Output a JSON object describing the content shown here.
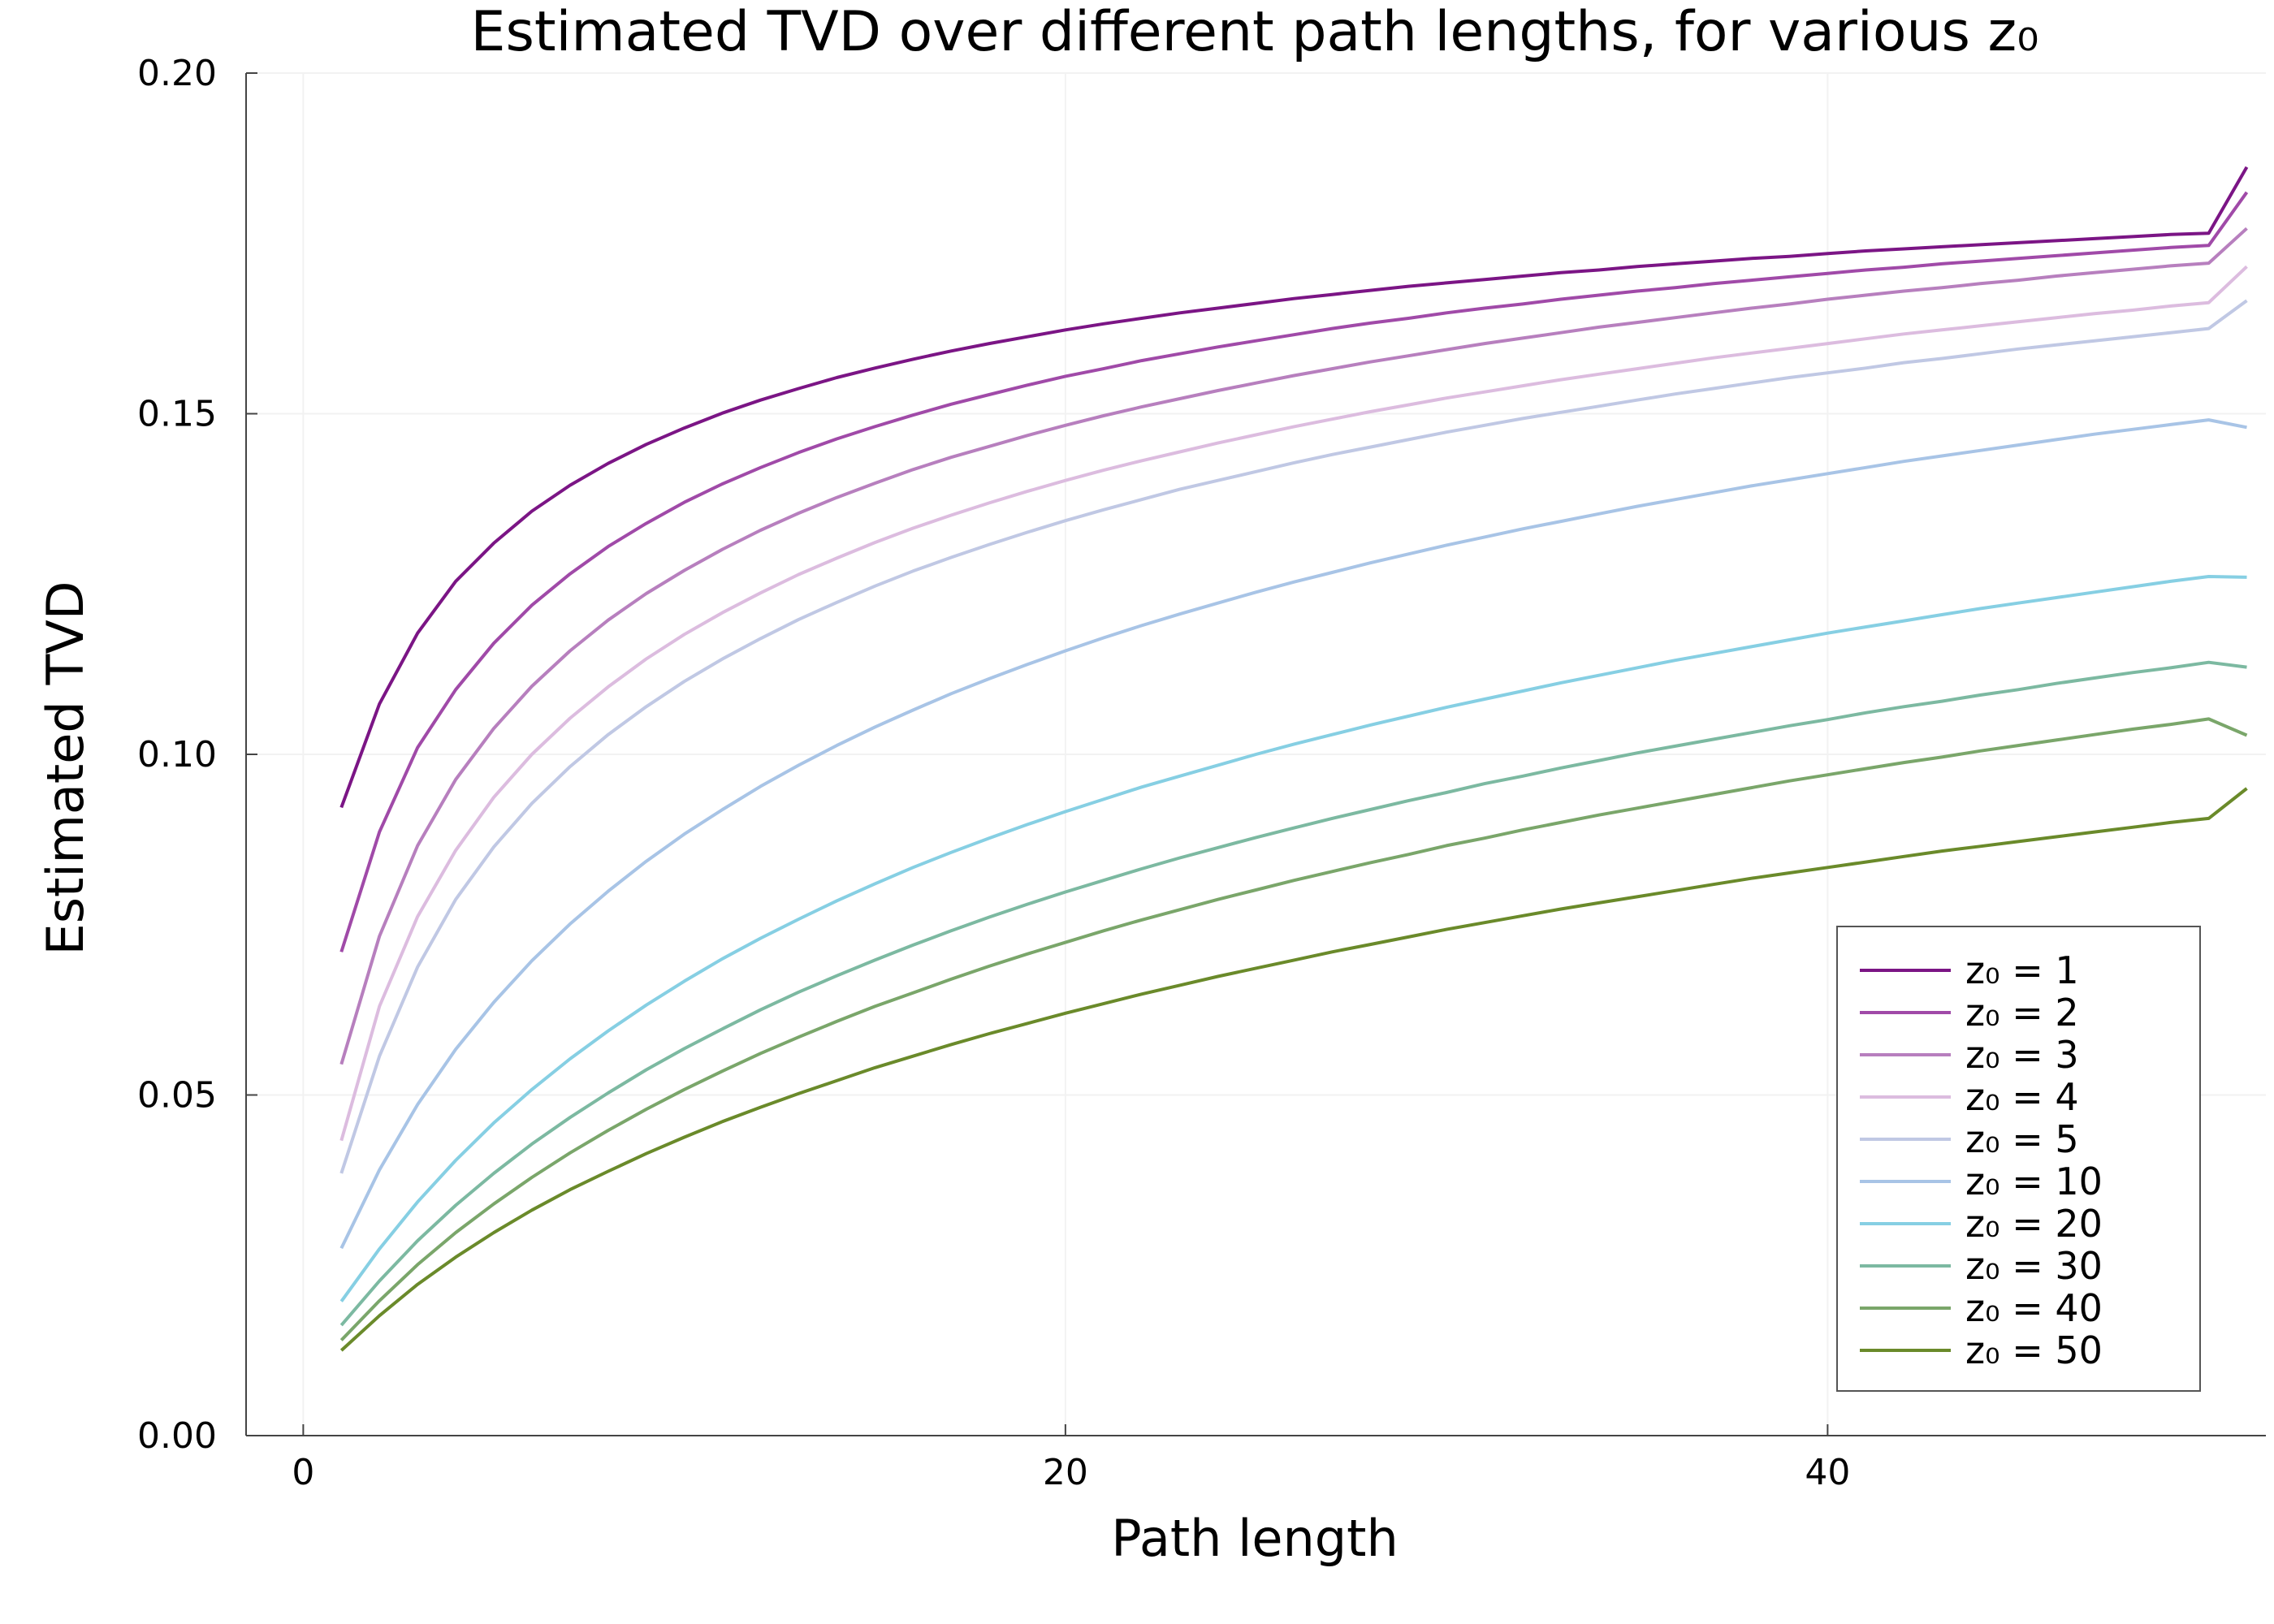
{
  "chart_data": {
    "type": "line",
    "title": "Estimated TVD over different path lengths, for various z₀",
    "xlabel": "Path length",
    "ylabel": "Estimated TVD",
    "xlim": [
      -1.5,
      51.5
    ],
    "ylim": [
      0.0,
      0.2
    ],
    "xticks": [
      0,
      20,
      40
    ],
    "yticks": [
      0.0,
      0.05,
      0.1,
      0.15,
      0.2
    ],
    "xtick_labels": [
      "0",
      "20",
      "40"
    ],
    "ytick_labels": [
      "0.00",
      "0.05",
      "0.10",
      "0.15",
      "0.20"
    ],
    "grid": true,
    "legend_position": "bottom-right",
    "x": [
      1,
      2,
      3,
      4,
      5,
      6,
      7,
      8,
      9,
      10,
      11,
      12,
      13,
      14,
      15,
      16,
      17,
      18,
      19,
      20,
      21,
      22,
      23,
      24,
      25,
      26,
      27,
      28,
      29,
      30,
      31,
      32,
      33,
      34,
      35,
      36,
      37,
      38,
      39,
      40,
      41,
      42,
      43,
      44,
      45,
      46,
      47,
      48,
      49,
      50,
      51
    ],
    "series": [
      {
        "name": "z₀ = 1",
        "color": "#7b1585",
        "values": [
          0.0922,
          0.1074,
          0.1178,
          0.1254,
          0.131,
          0.1357,
          0.1395,
          0.1427,
          0.1455,
          0.1479,
          0.1501,
          0.152,
          0.1537,
          0.1553,
          0.1567,
          0.158,
          0.1592,
          0.1603,
          0.1613,
          0.1623,
          0.1632,
          0.164,
          0.1648,
          0.1655,
          0.1662,
          0.1669,
          0.1675,
          0.1681,
          0.1687,
          0.1692,
          0.1697,
          0.1702,
          0.1707,
          0.1711,
          0.1716,
          0.172,
          0.1724,
          0.1728,
          0.1731,
          0.1735,
          0.1739,
          0.1742,
          0.1745,
          0.1748,
          0.1751,
          0.1754,
          0.1757,
          0.176,
          0.1763,
          0.1765,
          0.1862
        ]
      },
      {
        "name": "z₀ = 2",
        "color": "#a04aa8",
        "values": [
          0.071,
          0.0886,
          0.101,
          0.1095,
          0.1163,
          0.1219,
          0.1265,
          0.1305,
          0.1339,
          0.137,
          0.1397,
          0.1421,
          0.1443,
          0.1463,
          0.1481,
          0.1498,
          0.1514,
          0.1528,
          0.1542,
          0.1555,
          0.1566,
          0.1578,
          0.1588,
          0.1598,
          0.1607,
          0.1616,
          0.1625,
          0.1633,
          0.164,
          0.1648,
          0.1655,
          0.1661,
          0.1668,
          0.1674,
          0.168,
          0.1685,
          0.1691,
          0.1696,
          0.1701,
          0.1706,
          0.1711,
          0.1715,
          0.172,
          0.1724,
          0.1728,
          0.1732,
          0.1736,
          0.174,
          0.1744,
          0.1747,
          0.1825
        ]
      },
      {
        "name": "z₀ = 3",
        "color": "#b77fbe",
        "values": [
          0.0545,
          0.0733,
          0.0866,
          0.0963,
          0.1038,
          0.11,
          0.1152,
          0.1197,
          0.1236,
          0.127,
          0.1301,
          0.1329,
          0.1354,
          0.1377,
          0.1398,
          0.1418,
          0.1436,
          0.1452,
          0.1468,
          0.1483,
          0.1497,
          0.151,
          0.1522,
          0.1534,
          0.1545,
          0.1556,
          0.1566,
          0.1576,
          0.1585,
          0.1594,
          0.1603,
          0.1611,
          0.1619,
          0.1627,
          0.1634,
          0.1641,
          0.1648,
          0.1655,
          0.1661,
          0.1668,
          0.1674,
          0.168,
          0.1685,
          0.1691,
          0.1696,
          0.1702,
          0.1707,
          0.1712,
          0.1717,
          0.1721,
          0.1772
        ]
      },
      {
        "name": "z₀ = 4",
        "color": "#dcbcdf",
        "values": [
          0.0433,
          0.063,
          0.0762,
          0.0859,
          0.0937,
          0.1,
          0.1053,
          0.1099,
          0.114,
          0.1176,
          0.1208,
          0.1237,
          0.1264,
          0.1288,
          0.1311,
          0.1332,
          0.1351,
          0.1369,
          0.1386,
          0.1402,
          0.1417,
          0.1431,
          0.1444,
          0.1457,
          0.1469,
          0.1481,
          0.1492,
          0.1503,
          0.1513,
          0.1523,
          0.1532,
          0.1541,
          0.155,
          0.1558,
          0.1566,
          0.1574,
          0.1582,
          0.1589,
          0.1596,
          0.1603,
          0.161,
          0.1617,
          0.1623,
          0.1629,
          0.1635,
          0.1641,
          0.1647,
          0.1652,
          0.1658,
          0.1663,
          0.1716
        ]
      },
      {
        "name": "z₀ = 5",
        "color": "#c0c8e4",
        "values": [
          0.0385,
          0.0557,
          0.0688,
          0.0787,
          0.0864,
          0.0928,
          0.0982,
          0.1029,
          0.107,
          0.1107,
          0.114,
          0.117,
          0.1198,
          0.1223,
          0.1247,
          0.1269,
          0.1289,
          0.1308,
          0.1326,
          0.1343,
          0.1359,
          0.1374,
          0.1389,
          0.1402,
          0.1415,
          0.1428,
          0.144,
          0.1451,
          0.1462,
          0.1473,
          0.1483,
          0.1493,
          0.1502,
          0.1511,
          0.152,
          0.1529,
          0.1537,
          0.1545,
          0.1553,
          0.156,
          0.1567,
          0.1575,
          0.1581,
          0.1588,
          0.1595,
          0.1601,
          0.1607,
          0.1613,
          0.1619,
          0.1625,
          0.1666
        ]
      },
      {
        "name": "z₀ = 10",
        "color": "#a8c4e6",
        "values": [
          0.0275,
          0.039,
          0.0486,
          0.0567,
          0.0636,
          0.0697,
          0.0751,
          0.0799,
          0.0843,
          0.0883,
          0.0919,
          0.0953,
          0.0984,
          0.1013,
          0.104,
          0.1065,
          0.1089,
          0.1111,
          0.1132,
          0.1152,
          0.1171,
          0.1189,
          0.1206,
          0.1222,
          0.1238,
          0.1253,
          0.1267,
          0.1281,
          0.1294,
          0.1307,
          0.1319,
          0.1331,
          0.1342,
          0.1353,
          0.1364,
          0.1374,
          0.1384,
          0.1394,
          0.1403,
          0.1412,
          0.1421,
          0.143,
          0.1438,
          0.1446,
          0.1454,
          0.1462,
          0.147,
          0.1477,
          0.1484,
          0.1491,
          0.148
        ]
      },
      {
        "name": "z₀ = 20",
        "color": "#86cfe3",
        "values": [
          0.0197,
          0.0274,
          0.0343,
          0.0404,
          0.0459,
          0.0508,
          0.0553,
          0.0594,
          0.0632,
          0.0667,
          0.07,
          0.073,
          0.0758,
          0.0785,
          0.081,
          0.0834,
          0.0856,
          0.0877,
          0.0897,
          0.0916,
          0.0934,
          0.0952,
          0.0968,
          0.0984,
          0.1,
          0.1015,
          0.1029,
          0.1043,
          0.1056,
          0.1069,
          0.1081,
          0.1093,
          0.1105,
          0.1116,
          0.1127,
          0.1138,
          0.1148,
          0.1158,
          0.1168,
          0.1178,
          0.1187,
          0.1196,
          0.1205,
          0.1214,
          0.1222,
          0.123,
          0.1238,
          0.1246,
          0.1254,
          0.1261,
          0.126
        ]
      },
      {
        "name": "z₀ = 30",
        "color": "#7cb9a1",
        "values": [
          0.0162,
          0.0227,
          0.0286,
          0.0338,
          0.0385,
          0.0428,
          0.0467,
          0.0503,
          0.0537,
          0.0568,
          0.0597,
          0.0625,
          0.0651,
          0.0675,
          0.0698,
          0.072,
          0.0741,
          0.0761,
          0.078,
          0.0798,
          0.0815,
          0.0832,
          0.0848,
          0.0863,
          0.0878,
          0.0892,
          0.0906,
          0.0919,
          0.0932,
          0.0944,
          0.0957,
          0.0968,
          0.098,
          0.0991,
          0.1002,
          0.1012,
          0.1022,
          0.1032,
          0.1042,
          0.1051,
          0.1061,
          0.107,
          0.1078,
          0.1087,
          0.1095,
          0.1104,
          0.1112,
          0.112,
          0.1127,
          0.1135,
          0.1128
        ]
      },
      {
        "name": "z₀ = 40",
        "color": "#7aa66a",
        "values": [
          0.014,
          0.0198,
          0.0251,
          0.0298,
          0.034,
          0.0379,
          0.0415,
          0.0448,
          0.0479,
          0.0508,
          0.0535,
          0.0561,
          0.0585,
          0.0608,
          0.063,
          0.065,
          0.067,
          0.0689,
          0.0707,
          0.0724,
          0.0741,
          0.0757,
          0.0772,
          0.0787,
          0.0801,
          0.0815,
          0.0828,
          0.0841,
          0.0853,
          0.0866,
          0.0877,
          0.0889,
          0.09,
          0.0911,
          0.0921,
          0.0931,
          0.0941,
          0.0951,
          0.0961,
          0.097,
          0.0979,
          0.0988,
          0.0996,
          0.1005,
          0.1013,
          0.1021,
          0.1029,
          0.1037,
          0.1044,
          0.1052,
          0.1028
        ]
      },
      {
        "name": "z₀ = 50",
        "color": "#6a8a2a",
        "values": [
          0.0125,
          0.0176,
          0.0222,
          0.0262,
          0.0298,
          0.0331,
          0.0361,
          0.0388,
          0.0414,
          0.0438,
          0.0461,
          0.0482,
          0.0502,
          0.0521,
          0.054,
          0.0557,
          0.0574,
          0.059,
          0.0605,
          0.062,
          0.0634,
          0.0648,
          0.0661,
          0.0674,
          0.0686,
          0.0698,
          0.071,
          0.0721,
          0.0732,
          0.0743,
          0.0753,
          0.0763,
          0.0773,
          0.0782,
          0.0791,
          0.08,
          0.0809,
          0.0818,
          0.0826,
          0.0834,
          0.0842,
          0.085,
          0.0858,
          0.0865,
          0.0872,
          0.0879,
          0.0886,
          0.0893,
          0.09,
          0.0906,
          0.095
        ]
      }
    ]
  }
}
